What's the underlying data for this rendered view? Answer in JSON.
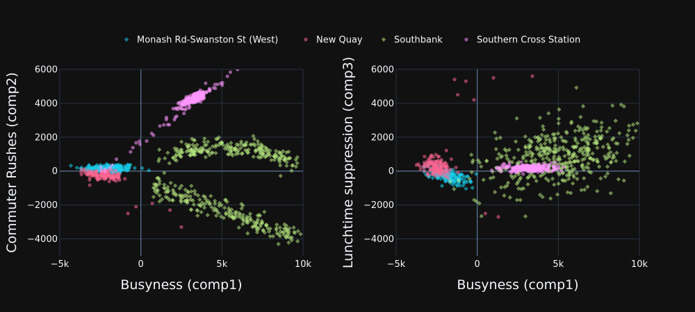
{
  "chart_data": {
    "type": "scatter",
    "legend": {
      "placement": "top-center",
      "items": [
        {
          "name": "Monash Rd-Swanston St (West)",
          "color": "#19d3f3",
          "symbol": "diamond"
        },
        {
          "name": "New Quay",
          "color": "#ff6692",
          "symbol": "circle"
        },
        {
          "name": "Southbank",
          "color": "#b6e880",
          "symbol": "diamond"
        },
        {
          "name": "Southern Cross Station",
          "color": "#ff97ff",
          "symbol": "circle"
        }
      ]
    },
    "panels": [
      {
        "xlabel": "Busyness (comp1)",
        "ylabel": "Commuter Rushes (comp2)",
        "xlim": [
          -5000,
          10000
        ],
        "ylim": [
          -5000,
          6000
        ],
        "xticks": [
          -5000,
          0,
          5000,
          10000
        ],
        "xtick_labels": [
          "−5k",
          "0",
          "5k",
          "10k"
        ],
        "yticks": [
          -4000,
          -2000,
          0,
          2000,
          4000,
          6000
        ],
        "ytick_labels": [
          "−4000",
          "−2000",
          "0",
          "2000",
          "4000",
          "6000"
        ],
        "series": [
          {
            "name": "Monash Rd-Swanston St (West)",
            "clusters": [
              {
                "cx": -2000,
                "cy": 150,
                "sx": 900,
                "sy": 150,
                "n": 160,
                "corr": 0
              }
            ]
          },
          {
            "name": "New Quay",
            "clusters": [
              {
                "cx": -2300,
                "cy": -250,
                "sx": 550,
                "sy": 180,
                "n": 130,
                "corr": -0.4
              }
            ],
            "points": [
              [
                -300,
                -2100
              ],
              [
                700,
                -1900
              ],
              [
                1800,
                -2300
              ],
              [
                -800,
                -2500
              ],
              [
                2500,
                -3300
              ]
            ]
          },
          {
            "name": "Southbank",
            "bands": [
              {
                "x0": 1200,
                "x1": 9500,
                "ya": 700,
                "yb": 2200,
                "yc": 500,
                "sy": 280,
                "n": 220
              },
              {
                "x0": 800,
                "x1": 9800,
                "ya": -800,
                "yb": -2400,
                "yc": -4100,
                "sy": 320,
                "n": 220
              }
            ]
          },
          {
            "name": "Southern Cross Station",
            "clusters": [
              {
                "cx": 3300,
                "cy": 4300,
                "sx": 420,
                "sy": 260,
                "n": 200,
                "corr": 0.8
              }
            ],
            "line": {
              "x0": -2500,
              "y0": 0,
              "x1": 6000,
              "y1": 6000,
              "n": 45,
              "sy": 150
            }
          }
        ]
      },
      {
        "xlabel": "Busyness (comp1)",
        "ylabel": "Lunchtime suppression (comp3)",
        "xlim": [
          -5000,
          10000
        ],
        "ylim": [
          -5000,
          6000
        ],
        "xticks": [
          -5000,
          0,
          5000,
          10000
        ],
        "xtick_labels": [
          "−5k",
          "0",
          "5k",
          "10k"
        ],
        "yticks": [
          -4000,
          -2000,
          0,
          2000,
          4000,
          6000
        ],
        "ytick_labels": [
          "−4000",
          "−2000",
          "0",
          "2000",
          "4000",
          "6000"
        ],
        "series": [
          {
            "name": "Monash Rd-Swanston St (West)",
            "clusters": [
              {
                "cx": -1800,
                "cy": -300,
                "sx": 700,
                "sy": 300,
                "n": 160,
                "corr": -0.6
              }
            ]
          },
          {
            "name": "New Quay",
            "clusters": [
              {
                "cx": -2500,
                "cy": 200,
                "sx": 500,
                "sy": 300,
                "n": 130,
                "corr": -0.3
              }
            ],
            "points": [
              [
                -1400,
                5400
              ],
              [
                -700,
                5300
              ],
              [
                1000,
                5500
              ],
              [
                3400,
                5600
              ],
              [
                -200,
                4200
              ],
              [
                1300,
                -2700
              ],
              [
                500,
                -2500
              ],
              [
                -1200,
                4500
              ]
            ]
          },
          {
            "name": "Southbank",
            "clusters": [
              {
                "cx": 5000,
                "cy": 800,
                "sx": 2300,
                "sy": 1100,
                "n": 420,
                "corr": 0.35
              }
            ]
          },
          {
            "name": "Southern Cross Station",
            "clusters": [
              {
                "cx": 3200,
                "cy": 180,
                "sx": 900,
                "sy": 120,
                "n": 220,
                "corr": 0
              }
            ]
          }
        ]
      }
    ]
  }
}
